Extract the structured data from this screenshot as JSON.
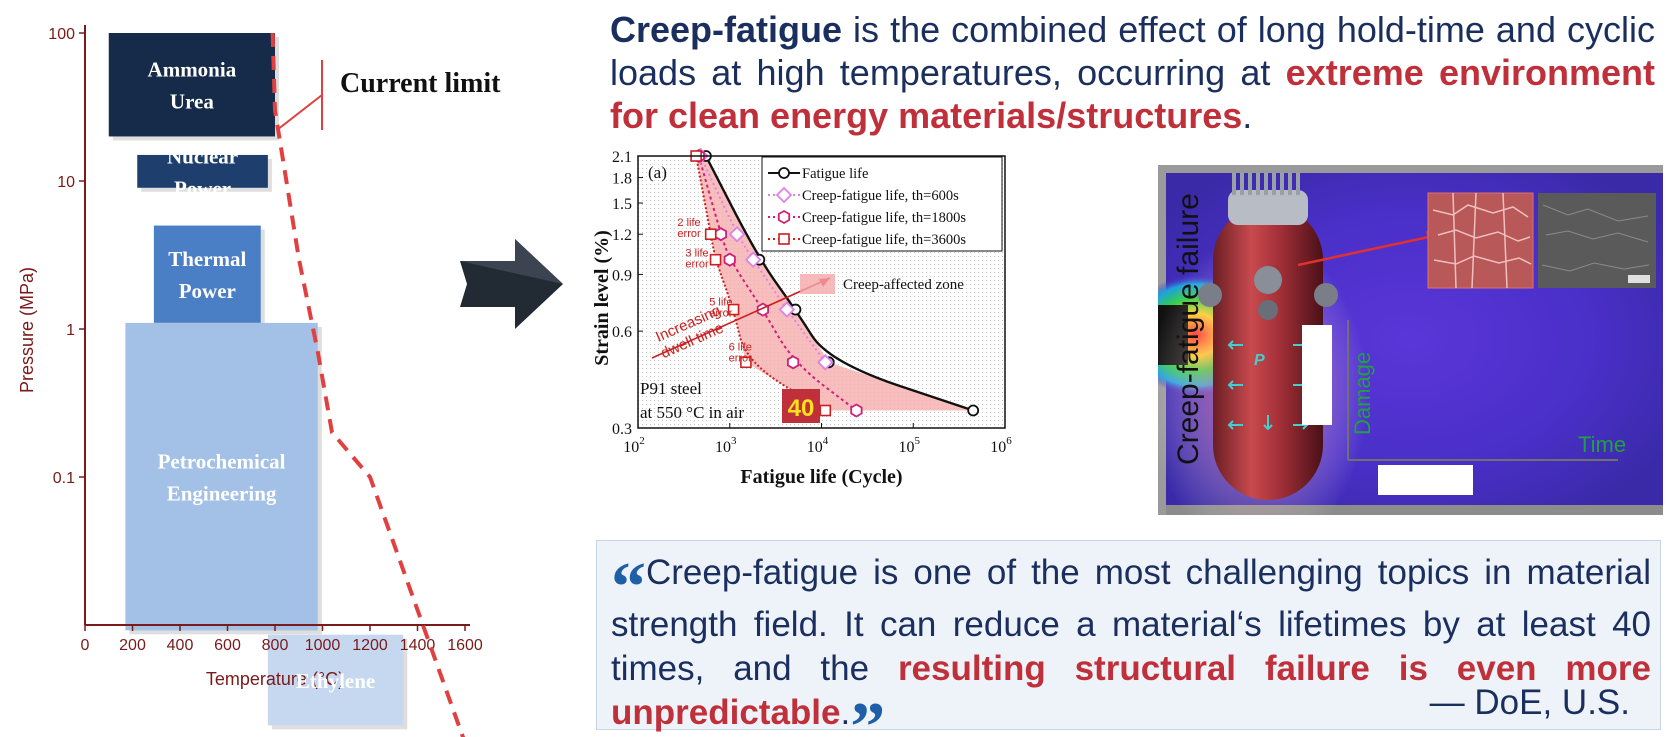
{
  "headline": {
    "term": "Creep-fatigue",
    "part1": " is the combined effect of long hold-time and cyclic loads at high temperatures, occurring at ",
    "highlight": "extreme environment for clean energy materials/structures",
    "end": "."
  },
  "quote": {
    "open_mark": "“",
    "text": "Creep-fatigue is one of the most challenging topics in material strength field. It can reduce a material‘s lifetimes by at least 40 times, and the ",
    "highlight": "resulting structural failure is even more unpredictable",
    "end": ".",
    "close_mark": "”",
    "source": "— DoE, U.S."
  },
  "chart_data": [
    {
      "type": "area",
      "title": "",
      "xlabel": "Temperature (°C)",
      "ylabel": "Pressure (MPa)",
      "xlim": [
        0,
        1600
      ],
      "ylim": [
        0.01,
        100
      ],
      "yscale": "log",
      "x_ticks": [
        "0",
        "200",
        "400",
        "600",
        "800",
        "1000",
        "1200",
        "1400",
        "1600"
      ],
      "y_ticks": [
        "100",
        "10",
        "1",
        "0.1"
      ],
      "regions": [
        {
          "name": "Ammonia",
          "name2": "Urea",
          "x": [
            100,
            800
          ],
          "y": [
            20,
            100
          ],
          "color": "#162b49"
        },
        {
          "name": "Nuclear",
          "name2": "Power",
          "x": [
            220,
            770
          ],
          "y": [
            9,
            15
          ],
          "color": "#1e3e6d"
        },
        {
          "name": "Thermal",
          "name2": "Power",
          "x": [
            290,
            740
          ],
          "y": [
            1.1,
            5
          ],
          "color": "#4a7fc6"
        },
        {
          "name": "Petrochemical",
          "name2": "Engineering",
          "x": [
            170,
            980
          ],
          "y": [
            0.0092,
            1.1
          ],
          "color": "#a3c0e6"
        },
        {
          "name": "Ethylene",
          "name2": "",
          "x": [
            770,
            1340
          ],
          "y": [
            0.0021,
            0.0086
          ],
          "color": "#c5d8ef"
        }
      ],
      "limit_line": {
        "label": "Current limit",
        "color": "#e04040",
        "points": [
          [
            790,
            100
          ],
          [
            800,
            30
          ],
          [
            840,
            12
          ],
          [
            900,
            3
          ],
          [
            980,
            0.7
          ],
          [
            1040,
            0.2
          ],
          [
            1200,
            0.1
          ],
          [
            1600,
            0.0016
          ]
        ]
      }
    },
    {
      "type": "scatter",
      "panel_label": "(a)",
      "xlabel": "Fatigue life (Cycle)",
      "ylabel": "Strain level (%)",
      "xscale": "log",
      "yscale": "log",
      "xlim": [
        100,
        1000000
      ],
      "ylim": [
        0.3,
        2.1
      ],
      "x_ticks": [
        {
          "v": 100,
          "base": "10",
          "exp": "2"
        },
        {
          "v": 1000,
          "base": "10",
          "exp": "3"
        },
        {
          "v": 10000,
          "base": "10",
          "exp": "4"
        },
        {
          "v": 100000,
          "base": "10",
          "exp": "5"
        },
        {
          "v": 1000000,
          "base": "10",
          "exp": "6"
        }
      ],
      "y_ticks": [
        {
          "v": 2.1,
          "label": "2.1"
        },
        {
          "v": 1.8,
          "label": "1.8"
        },
        {
          "v": 1.5,
          "label": "1.5"
        },
        {
          "v": 1.2,
          "label": "1.2"
        },
        {
          "v": 0.9,
          "label": "0.9"
        },
        {
          "v": 0.6,
          "label": "0.6"
        },
        {
          "v": 0.3,
          "label": "0.3"
        }
      ],
      "series": [
        {
          "name": "Fatigue life",
          "marker": "circle",
          "color": "#111111",
          "points": [
            [
              550,
              2.1
            ],
            [
              2100,
              1.0
            ],
            [
              5200,
              0.7
            ],
            [
              12000,
              0.48
            ],
            [
              450000,
              0.34
            ]
          ]
        },
        {
          "name": "Creep-fatigue life, th=600s",
          "marker": "diamond",
          "color": "#e080e8",
          "points": [
            [
              480,
              2.1
            ],
            [
              1200,
              1.2
            ],
            [
              1800,
              1.0
            ],
            [
              4200,
              0.7
            ],
            [
              11000,
              0.48
            ]
          ]
        },
        {
          "name": "Creep-fatigue life, th=1800s",
          "marker": "hexagon",
          "color": "#d0207a",
          "points": [
            [
              460,
              2.1
            ],
            [
              800,
              1.2
            ],
            [
              1000,
              1.0
            ],
            [
              2300,
              0.7
            ],
            [
              4900,
              0.48
            ],
            [
              24000,
              0.34
            ]
          ]
        },
        {
          "name": "Creep-fatigue life, th=3600s",
          "marker": "square",
          "color": "#cc2020",
          "points": [
            [
              430,
              2.1
            ],
            [
              620,
              1.2
            ],
            [
              700,
              1.0
            ],
            [
              1100,
              0.7
            ],
            [
              1500,
              0.48
            ],
            [
              11000,
              0.34
            ]
          ]
        }
      ],
      "zone": {
        "label": "Creep-affected zone",
        "color": "#f5a8a8"
      },
      "annotations": [
        {
          "lines": [
            "2 life",
            "error"
          ],
          "x": 360,
          "y": 1.22
        },
        {
          "lines": [
            "3 life",
            "error"
          ],
          "x": 440,
          "y": 0.98
        },
        {
          "lines": [
            "5 life",
            "error"
          ],
          "x": 800,
          "y": 0.69
        },
        {
          "lines": [
            "6 life",
            "error"
          ],
          "x": 1300,
          "y": 0.5
        }
      ],
      "dwell_label": [
        "Increasing",
        "dwell time"
      ],
      "material": [
        "P91 steel",
        "at 550 °C in air"
      ],
      "badge": "40"
    },
    {
      "type": "diagram",
      "title": "Creep-fatigue failure",
      "axis_x": "Time",
      "axis_y": "Damage"
    }
  ]
}
